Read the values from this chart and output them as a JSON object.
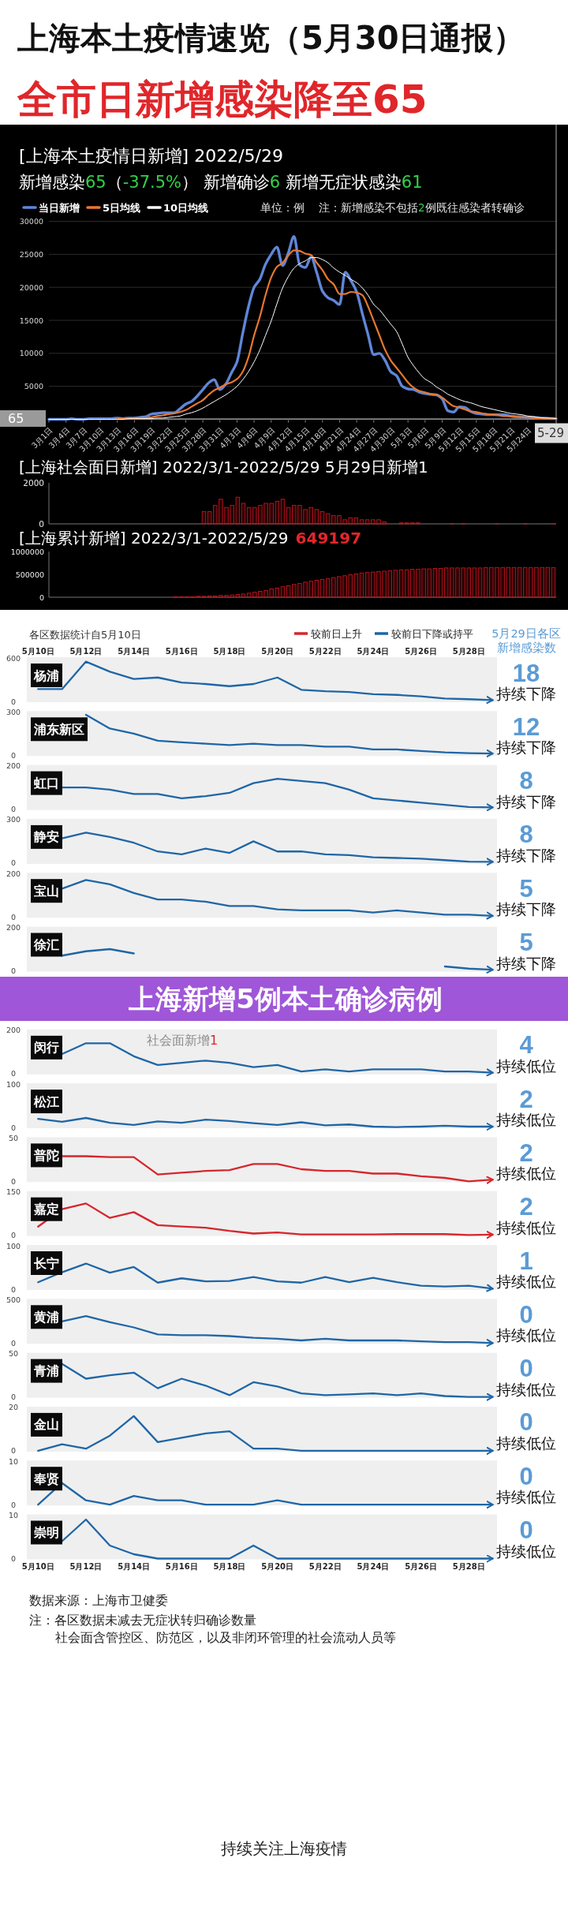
{
  "chart_data": [
    {
      "type": "other",
      "title": "上海本土疫情速览（5月30日通报）",
      "subtitle": "全市日新增感染降至65"
    },
    {
      "type": "line",
      "title": "[上海本土疫情日新增] 2022/5/29",
      "subtitle": "新增感染65（-37.5%） 新增确诊6 新增无症状感染61",
      "annotations": [
        "单位：例",
        "注：新增感染不包括2例既往感染者转确诊"
      ],
      "x": [
        "2022-03-01",
        "2022-03-02",
        "2022-03-03",
        "2022-03-04",
        "2022-03-05",
        "2022-03-06",
        "2022-03-07",
        "2022-03-08",
        "2022-03-09",
        "2022-03-10",
        "2022-03-11",
        "2022-03-12",
        "2022-03-13",
        "2022-03-14",
        "2022-03-15",
        "2022-03-16",
        "2022-03-17",
        "2022-03-18",
        "2022-03-19",
        "2022-03-20",
        "2022-03-21",
        "2022-03-22",
        "2022-03-23",
        "2022-03-24",
        "2022-03-25",
        "2022-03-26",
        "2022-03-27",
        "2022-03-28",
        "2022-03-29",
        "2022-03-30",
        "2022-03-31",
        "2022-04-01",
        "2022-04-02",
        "2022-04-03",
        "2022-04-04",
        "2022-04-05",
        "2022-04-06",
        "2022-04-07",
        "2022-04-08",
        "2022-04-09",
        "2022-04-10",
        "2022-04-11",
        "2022-04-12",
        "2022-04-13",
        "2022-04-14",
        "2022-04-15",
        "2022-04-16",
        "2022-04-17",
        "2022-04-18",
        "2022-04-19",
        "2022-04-20",
        "2022-04-21",
        "2022-04-22",
        "2022-04-23",
        "2022-04-24",
        "2022-04-25",
        "2022-04-26",
        "2022-04-27",
        "2022-04-28",
        "2022-04-29",
        "2022-04-30",
        "2022-05-01",
        "2022-05-02",
        "2022-05-03",
        "2022-05-04",
        "2022-05-05",
        "2022-05-06",
        "2022-05-07",
        "2022-05-08",
        "2022-05-09",
        "2022-05-10",
        "2022-05-11",
        "2022-05-12",
        "2022-05-13",
        "2022-05-14",
        "2022-05-15",
        "2022-05-16",
        "2022-05-17",
        "2022-05-18",
        "2022-05-19",
        "2022-05-20",
        "2022-05-21",
        "2022-05-22",
        "2022-05-23",
        "2022-05-24",
        "2022-05-25",
        "2022-05-26",
        "2022-05-27",
        "2022-05-28",
        "2022-05-29"
      ],
      "series": [
        {
          "name": "当日新增",
          "color": "#5f86d8",
          "values": [
            0,
            0,
            0,
            0,
            100,
            0,
            0,
            100,
            100,
            100,
            100,
            100,
            200,
            100,
            200,
            200,
            300,
            400,
            800,
            900,
            1000,
            1000,
            1000,
            1600,
            2300,
            2700,
            3500,
            4500,
            5500,
            6000,
            4500,
            5300,
            7000,
            8700,
            13000,
            17000,
            20000,
            21200,
            23500,
            25000,
            26100,
            23300,
            25200,
            27700,
            23400,
            23000,
            24600,
            22200,
            19400,
            18400,
            18000,
            17400,
            22300,
            21000,
            19300,
            16000,
            12800,
            9800,
            10000,
            8900,
            7200,
            6600,
            5000,
            4600,
            4500,
            4100,
            3900,
            3800,
            3700,
            3100,
            1300,
            1100,
            1900,
            1800,
            1200,
            900,
            800,
            700,
            700,
            700,
            700,
            500,
            400,
            400,
            300,
            300,
            200,
            200,
            100,
            100
          ]
        },
        {
          "name": "5日均线",
          "color": "#e8772e",
          "values": [
            null,
            null,
            null,
            null,
            null,
            null,
            null,
            null,
            null,
            null,
            null,
            null,
            100,
            100,
            100,
            200,
            200,
            200,
            300,
            500,
            600,
            800,
            900,
            1100,
            1400,
            1900,
            2400,
            2900,
            3700,
            4400,
            4800,
            5300,
            5600,
            6100,
            7200,
            9400,
            12700,
            15500,
            18800,
            21500,
            23100,
            23700,
            24800,
            25600,
            25500,
            25100,
            24900,
            23700,
            22600,
            21200,
            20400,
            19000,
            19000,
            19300,
            19200,
            18800,
            17100,
            14900,
            12700,
            10500,
            8900,
            7800,
            6700,
            5600,
            4800,
            4300,
            4100,
            3800,
            3700,
            3300,
            2600,
            2000,
            1800,
            1500,
            1200,
            1100,
            900,
            800,
            700,
            600,
            500,
            500,
            400,
            300,
            300,
            200,
            200,
            100,
            100,
            100
          ]
        },
        {
          "name": "10日均线",
          "color": "#ffffff",
          "values": [
            0,
            0,
            0,
            0,
            0,
            0,
            0,
            0,
            0,
            0,
            0,
            0,
            0,
            0,
            100,
            100,
            100,
            100,
            100,
            200,
            200,
            300,
            400,
            500,
            800,
            1000,
            1300,
            1700,
            2200,
            2700,
            3200,
            3700,
            4300,
            5000,
            6000,
            7200,
            8700,
            10500,
            12700,
            14900,
            17500,
            19900,
            21600,
            22900,
            23600,
            24000,
            24500,
            24500,
            24200,
            23700,
            22900,
            22300,
            21800,
            21200,
            20700,
            19900,
            18800,
            17400,
            16600,
            15500,
            14400,
            13300,
            11400,
            9400,
            8100,
            7000,
            6100,
            5600,
            4900,
            4400,
            3800,
            3400,
            3000,
            2700,
            2500,
            2200,
            1900,
            1700,
            1500,
            1300,
            1100,
            900,
            800,
            700,
            500,
            400,
            300,
            200,
            200,
            100
          ]
        }
      ],
      "xlim": [
        "2022-03-01",
        "2022-05-29"
      ],
      "xticks": [
        {
          "value": "2022-03-01",
          "label": "3月1日"
        },
        {
          "value": "2022-03-04",
          "label": "3月4日"
        },
        {
          "value": "2022-03-07",
          "label": "3月7日"
        },
        {
          "value": "2022-03-10",
          "label": "3月10日"
        },
        {
          "value": "2022-03-13",
          "label": "3月13日"
        },
        {
          "value": "2022-03-16",
          "label": "3月16日"
        },
        {
          "value": "2022-03-19",
          "label": "3月19日"
        },
        {
          "value": "2022-03-22",
          "label": "3月22日"
        },
        {
          "value": "2022-03-25",
          "label": "3月25日"
        },
        {
          "value": "2022-03-28",
          "label": "3月28日"
        },
        {
          "value": "2022-03-31",
          "label": "3月31日"
        },
        {
          "value": "2022-04-03",
          "label": "4月3日"
        },
        {
          "value": "2022-04-06",
          "label": "4月6日"
        },
        {
          "value": "2022-04-09",
          "label": "4月9日"
        },
        {
          "value": "2022-04-12",
          "label": "4月12日"
        },
        {
          "value": "2022-04-15",
          "label": "4月15日"
        },
        {
          "value": "2022-04-18",
          "label": "4月18日"
        },
        {
          "value": "2022-04-21",
          "label": "4月21日"
        },
        {
          "value": "2022-04-24",
          "label": "4月24日"
        },
        {
          "value": "2022-04-27",
          "label": "4月27日"
        },
        {
          "value": "2022-04-30",
          "label": "4月30日"
        },
        {
          "value": "2022-05-03",
          "label": "5月3日"
        },
        {
          "value": "2022-05-06",
          "label": "5月6日"
        },
        {
          "value": "2022-05-09",
          "label": "5月9日"
        },
        {
          "value": "2022-05-12",
          "label": "5月12日"
        },
        {
          "value": "2022-05-15",
          "label": "5月15日"
        },
        {
          "value": "2022-05-18",
          "label": "5月18日"
        },
        {
          "value": "2022-05-21",
          "label": "5月21日"
        },
        {
          "value": "2022-05-24",
          "label": "5月24日"
        }
      ],
      "ylim": [
        0,
        30000
      ],
      "yticks": [
        5000,
        10000,
        15000,
        20000,
        25000,
        30000
      ],
      "grid": "y",
      "legend": "top left",
      "ref_lines": [
        {
          "axis": "x",
          "value": "2022-05-29",
          "label": "5-29",
          "color": "#b0b0b0"
        },
        {
          "axis": "y",
          "value": 65,
          "label": "65",
          "color": "#b0b0b0"
        }
      ]
    },
    {
      "type": "bar",
      "title": "[上海社会面日新增] 2022/3/1-2022/5/29 5月29日新增1",
      "categories": [
        null,
        null,
        null,
        null,
        null,
        null,
        null,
        null,
        null,
        null,
        null,
        null,
        null,
        null,
        null,
        null,
        null,
        null,
        null,
        null,
        null,
        null,
        null,
        null,
        null,
        null,
        null,
        null,
        null,
        null,
        null,
        null,
        null,
        null,
        null,
        null,
        null,
        null,
        null,
        null,
        null,
        null,
        null,
        null,
        null,
        null,
        null,
        null,
        null,
        null,
        null,
        null,
        null,
        null,
        null,
        null,
        null,
        null,
        null,
        null,
        null,
        null,
        null,
        null,
        null,
        null,
        null,
        null,
        null,
        null,
        null,
        null,
        null,
        null,
        null,
        null,
        null,
        null,
        null,
        null,
        null,
        null,
        null,
        null,
        null,
        null,
        null,
        null,
        null,
        null
      ],
      "values": [
        null,
        null,
        null,
        null,
        null,
        null,
        null,
        null,
        null,
        null,
        null,
        null,
        null,
        null,
        null,
        null,
        null,
        null,
        null,
        null,
        null,
        null,
        null,
        null,
        null,
        null,
        null,
        600,
        600,
        900,
        1200,
        800,
        900,
        1300,
        1000,
        800,
        800,
        900,
        1000,
        1000,
        1100,
        1200,
        800,
        900,
        900,
        700,
        800,
        700,
        600,
        500,
        400,
        400,
        200,
        300,
        300,
        200,
        200,
        200,
        200,
        100,
        0,
        0,
        50,
        50,
        50,
        50,
        0,
        0,
        0,
        0,
        0,
        20,
        0,
        20,
        0,
        0,
        0,
        0,
        0,
        20,
        0,
        0,
        0,
        0,
        20,
        0,
        0,
        0,
        0,
        1
      ],
      "color": "#c8141e",
      "ylim": [
        0,
        2000
      ],
      "yticks": [
        0,
        2000
      ],
      "tick_labels": "y"
    },
    {
      "type": "bar",
      "title": "[上海累计新增] 2022/3/1-2022/5/29",
      "annotations": [
        "649197"
      ],
      "categories": [
        null,
        null,
        null,
        null,
        null,
        null,
        null,
        null,
        null,
        null,
        null,
        null,
        null,
        null,
        null,
        null,
        null,
        null,
        null,
        null,
        null,
        null,
        null,
        null,
        null,
        null,
        null,
        null,
        null,
        null,
        null,
        null,
        null,
        null,
        null,
        null,
        null,
        null,
        null,
        null,
        null,
        null,
        null,
        null,
        null,
        null,
        null,
        null,
        null,
        null,
        null,
        null,
        null,
        null,
        null,
        null,
        null,
        null,
        null,
        null,
        null,
        null,
        null,
        null,
        null,
        null,
        null,
        null,
        null,
        null,
        null,
        null,
        null,
        null,
        null,
        null,
        null,
        null,
        null,
        null,
        null,
        null,
        null,
        null,
        null,
        null,
        null,
        null,
        null,
        null
      ],
      "values": [
        0,
        0,
        0,
        0,
        0,
        0,
        0,
        0,
        0,
        0,
        0,
        0,
        0,
        0,
        0,
        0,
        0,
        0,
        0,
        0,
        0,
        0,
        10000,
        10000,
        10000,
        10000,
        20000,
        20000,
        30000,
        30000,
        40000,
        40000,
        50000,
        60000,
        70000,
        90000,
        110000,
        130000,
        150000,
        180000,
        200000,
        230000,
        250000,
        280000,
        300000,
        330000,
        350000,
        370000,
        390000,
        410000,
        430000,
        450000,
        470000,
        490000,
        510000,
        530000,
        540000,
        550000,
        560000,
        570000,
        580000,
        590000,
        600000,
        600000,
        610000,
        610000,
        620000,
        620000,
        630000,
        630000,
        640000,
        640000,
        640000,
        640000,
        640000,
        640000,
        640000,
        650000,
        650000,
        650000,
        650000,
        650000,
        650000,
        650000,
        650000,
        650000,
        650000,
        650000,
        650000,
        650000
      ],
      "color": "#c8141e",
      "ylim": [
        0,
        1000000
      ],
      "yticks": [
        0,
        500000,
        1000000
      ],
      "tick_labels": "y"
    },
    {
      "type": "line",
      "title": "杨浦",
      "subtitle": "各区数据统计自5月10日",
      "legend": "top right",
      "categories": [
        "5月10日",
        null,
        "5月12日",
        null,
        "5月14日",
        null,
        "5月16日",
        null,
        "5月18日",
        null,
        "5月20日",
        null,
        "5月22日",
        null,
        "5月24日",
        null,
        "5月26日",
        null,
        "5月28日",
        null
      ],
      "series": [
        {
          "name": "较前日下降或持平",
          "color": "#1f66a6",
          "values": [
            170,
            170,
            550,
            410,
            310,
            330,
            260,
            240,
            210,
            240,
            330,
            160,
            140,
            130,
            100,
            90,
            70,
            40,
            30,
            18
          ]
        }
      ],
      "ylim": [
        0,
        600
      ],
      "yticks": [
        0,
        600
      ],
      "annotations": [
        "18",
        "持续下降",
        "5月29日各区新增感染数"
      ]
    },
    {
      "type": "line",
      "title": "浦东新区",
      "tick_labels": "y",
      "categories": [
        null,
        null,
        null,
        null,
        null,
        null,
        null,
        null,
        null,
        null,
        null,
        null,
        null,
        null,
        null,
        null,
        null,
        null,
        null,
        null
      ],
      "series": [
        {
          "color": "#1f66a6",
          "values": [
            null,
            null,
            280,
            185,
            150,
            100,
            90,
            80,
            70,
            80,
            70,
            70,
            60,
            60,
            40,
            40,
            30,
            20,
            15,
            12
          ]
        }
      ],
      "ylim": [
        0,
        300
      ],
      "yticks": [
        0,
        300
      ],
      "annotations": [
        "12",
        "持续下降"
      ]
    },
    {
      "type": "line",
      "title": "虹口",
      "tick_labels": "y",
      "categories": [
        null,
        null,
        null,
        null,
        null,
        null,
        null,
        null,
        null,
        null,
        null,
        null,
        null,
        null,
        null,
        null,
        null,
        null,
        null,
        null
      ],
      "series": [
        {
          "color": "#1f66a6",
          "values": [
            null,
            100,
            100,
            90,
            70,
            70,
            50,
            60,
            75,
            120,
            140,
            130,
            120,
            90,
            50,
            40,
            30,
            20,
            10,
            8
          ]
        }
      ],
      "ylim": [
        0,
        200
      ],
      "yticks": [
        0,
        200
      ],
      "annotations": [
        "8",
        "持续下降"
      ]
    },
    {
      "type": "line",
      "title": "静安",
      "tick_labels": "y",
      "categories": [
        null,
        null,
        null,
        null,
        null,
        null,
        null,
        null,
        null,
        null,
        null,
        null,
        null,
        null,
        null,
        null,
        null,
        null,
        null,
        null
      ],
      "series": [
        {
          "color": "#1f66a6",
          "values": [
            null,
            170,
            210,
            180,
            140,
            80,
            60,
            100,
            70,
            150,
            80,
            80,
            60,
            55,
            40,
            35,
            30,
            20,
            10,
            8
          ]
        }
      ],
      "ylim": [
        0,
        300
      ],
      "yticks": [
        0,
        300
      ],
      "annotations": [
        "8",
        "持续下降"
      ]
    },
    {
      "type": "line",
      "title": "宝山",
      "tick_labels": "y",
      "categories": [
        null,
        null,
        null,
        null,
        null,
        null,
        null,
        null,
        null,
        null,
        null,
        null,
        null,
        null,
        null,
        null,
        null,
        null,
        null,
        null
      ],
      "series": [
        {
          "color": "#1f66a6",
          "values": [
            null,
            130,
            170,
            150,
            110,
            80,
            80,
            70,
            50,
            50,
            35,
            30,
            30,
            30,
            20,
            30,
            20,
            10,
            10,
            5
          ]
        }
      ],
      "ylim": [
        0,
        200
      ],
      "yticks": [
        0,
        200
      ],
      "annotations": [
        "5",
        "持续下降"
      ]
    },
    {
      "type": "line",
      "title": "徐汇",
      "tick_labels": "y",
      "categories": [
        null,
        null,
        null,
        null,
        null,
        null,
        null,
        null,
        null,
        null,
        null,
        null,
        null,
        null,
        null,
        null,
        null,
        null,
        null,
        null
      ],
      "series": [
        {
          "color": "#1f66a6",
          "values": [
            null,
            70,
            90,
            100,
            80,
            null,
            null,
            null,
            null,
            null,
            null,
            null,
            null,
            null,
            null,
            null,
            null,
            20,
            10,
            5
          ]
        }
      ],
      "ylim": [
        0,
        200
      ],
      "yticks": [
        0,
        200
      ],
      "annotations": [
        "5",
        "持续下降"
      ]
    },
    {
      "type": "other",
      "title": "上海新增5例本土确诊病例"
    },
    {
      "type": "line",
      "title": "闵行",
      "tick_labels": "y",
      "categories": [
        null,
        null,
        null,
        null,
        null,
        null,
        null,
        null,
        null,
        null,
        null,
        null,
        null,
        null,
        null,
        null,
        null,
        null,
        null,
        null
      ],
      "series": [
        {
          "color": "#1f66a6",
          "values": [
            null,
            90,
            140,
            140,
            80,
            40,
            50,
            60,
            50,
            30,
            40,
            10,
            20,
            10,
            20,
            20,
            20,
            10,
            10,
            4
          ]
        }
      ],
      "ylim": [
        0,
        200
      ],
      "yticks": [
        0,
        200
      ],
      "annotations": [
        "4",
        "持续低位",
        "社会面新增1"
      ]
    },
    {
      "type": "line",
      "title": "松江",
      "tick_labels": "y",
      "categories": [
        null,
        null,
        null,
        null,
        null,
        null,
        null,
        null,
        null,
        null,
        null,
        null,
        null,
        null,
        null,
        null,
        null,
        null,
        null,
        null
      ],
      "series": [
        {
          "color": "#1f66a6",
          "values": [
            20,
            13,
            22,
            11,
            6,
            14,
            11,
            18,
            15,
            10,
            6,
            12,
            5,
            7,
            2,
            1,
            2,
            4,
            2,
            2
          ]
        }
      ],
      "ylim": [
        0,
        100
      ],
      "yticks": [
        0,
        100
      ],
      "annotations": [
        "2",
        "持续低位"
      ]
    },
    {
      "type": "line",
      "title": "普陀",
      "tick_labels": "y",
      "categories": [
        null,
        null,
        null,
        null,
        null,
        null,
        null,
        null,
        null,
        null,
        null,
        null,
        null,
        null,
        null,
        null,
        null,
        null,
        null,
        null
      ],
      "series": [
        {
          "name": "较前日上升",
          "color": "#d6262c",
          "values": [
            null,
            29,
            29,
            28,
            28,
            8,
            10,
            12,
            13,
            20,
            20,
            14,
            12,
            12,
            9,
            9,
            6,
            4,
            0,
            2
          ]
        }
      ],
      "ylim": [
        0,
        50
      ],
      "yticks": [
        0,
        50
      ],
      "annotations": [
        "2",
        "持续低位"
      ]
    },
    {
      "type": "line",
      "title": "嘉定",
      "tick_labels": "y",
      "categories": [
        null,
        null,
        null,
        null,
        null,
        null,
        null,
        null,
        null,
        null,
        null,
        null,
        null,
        null,
        null,
        null,
        null,
        null,
        null,
        null
      ],
      "series": [
        {
          "color": "#d6262c",
          "values": [
            30,
            90,
            110,
            60,
            80,
            35,
            30,
            26,
            15,
            6,
            10,
            3,
            3,
            3,
            3,
            4,
            4,
            4,
            1,
            2
          ]
        }
      ],
      "ylim": [
        0,
        150
      ],
      "yticks": [
        0,
        150
      ],
      "annotations": [
        "2",
        "持续低位"
      ]
    },
    {
      "type": "line",
      "title": "长宁",
      "tick_labels": "y",
      "categories": [
        null,
        null,
        null,
        null,
        null,
        null,
        null,
        null,
        null,
        null,
        null,
        null,
        null,
        null,
        null,
        null,
        null,
        null,
        null,
        null
      ],
      "series": [
        {
          "color": "#1f66a6",
          "values": [
            16,
            39,
            59,
            38,
            51,
            15,
            25,
            18,
            19,
            28,
            18,
            15,
            28,
            16,
            26,
            16,
            8,
            6,
            8,
            1
          ]
        }
      ],
      "ylim": [
        0,
        100
      ],
      "yticks": [
        0,
        100
      ],
      "annotations": [
        "1",
        "持续低位"
      ]
    },
    {
      "type": "line",
      "title": "黄浦",
      "tick_labels": "y",
      "categories": [
        null,
        null,
        null,
        null,
        null,
        null,
        null,
        null,
        null,
        null,
        null,
        null,
        null,
        null,
        null,
        null,
        null,
        null,
        null,
        null
      ],
      "series": [
        {
          "color": "#1f66a6",
          "values": [
            null,
            250,
            310,
            240,
            180,
            100,
            90,
            90,
            80,
            60,
            50,
            30,
            50,
            30,
            30,
            30,
            20,
            10,
            10,
            0
          ]
        }
      ],
      "ylim": [
        0,
        500
      ],
      "yticks": [
        0,
        500
      ],
      "annotations": [
        "0",
        "持续低位"
      ]
    },
    {
      "type": "line",
      "title": "青浦",
      "tick_labels": "y",
      "categories": [
        null,
        null,
        null,
        null,
        null,
        null,
        null,
        null,
        null,
        null,
        null,
        null,
        null,
        null,
        null,
        null,
        null,
        null,
        null,
        null
      ],
      "series": [
        {
          "color": "#1f66a6",
          "values": [
            null,
            38,
            21,
            25,
            28,
            10,
            21,
            13,
            2,
            17,
            12,
            4,
            2,
            3,
            4,
            2,
            4,
            1,
            0,
            0
          ]
        }
      ],
      "ylim": [
        0,
        50
      ],
      "yticks": [
        0,
        50
      ],
      "annotations": [
        "0",
        "持续低位"
      ]
    },
    {
      "type": "line",
      "title": "金山",
      "tick_labels": "y",
      "categories": [
        null,
        null,
        null,
        null,
        null,
        null,
        null,
        null,
        null,
        null,
        null,
        null,
        null,
        null,
        null,
        null,
        null,
        null,
        null,
        null
      ],
      "series": [
        {
          "color": "#1f66a6",
          "values": [
            0,
            3,
            1,
            7,
            16,
            4,
            6,
            8,
            9,
            1,
            1,
            0,
            0,
            0,
            0,
            0,
            0,
            0,
            0,
            0
          ]
        }
      ],
      "ylim": [
        0,
        20
      ],
      "yticks": [
        0,
        20
      ],
      "annotations": [
        "0",
        "持续低位"
      ]
    },
    {
      "type": "line",
      "title": "奉贤",
      "tick_labels": "y",
      "categories": [
        null,
        null,
        null,
        null,
        null,
        null,
        null,
        null,
        null,
        null,
        null,
        null,
        null,
        null,
        null,
        null,
        null,
        null,
        null,
        null
      ],
      "series": [
        {
          "color": "#1f66a6",
          "values": [
            0,
            5,
            1,
            0,
            2,
            1,
            1,
            0,
            0,
            0,
            1,
            0,
            0,
            0,
            0,
            0,
            0,
            0,
            0,
            0
          ]
        }
      ],
      "ylim": [
        0,
        10
      ],
      "yticks": [
        0,
        10
      ],
      "annotations": [
        "0",
        "持续低位"
      ]
    },
    {
      "type": "line",
      "title": "崇明",
      "categories": [
        "5月10日",
        null,
        "5月12日",
        null,
        "5月14日",
        null,
        "5月16日",
        null,
        "5月18日",
        null,
        "5月20日",
        null,
        "5月22日",
        null,
        "5月24日",
        null,
        "5月26日",
        null,
        "5月28日",
        null
      ],
      "series": [
        {
          "color": "#1f66a6",
          "values": [
            null,
            4,
            9,
            3,
            1,
            0,
            0,
            0,
            0,
            3,
            0,
            0,
            0,
            0,
            0,
            0,
            0,
            0,
            0,
            0
          ]
        }
      ],
      "ylim": [
        0,
        10
      ],
      "yticks": [
        0,
        10
      ],
      "annotations": [
        "0",
        "持续低位"
      ]
    },
    {
      "type": "other",
      "annotations": [
        "数据来源：上海市卫健委",
        "注：各区数据未减去无症状转归确诊数量",
        "社会面含管控区、防范区，以及非闭环管理的社会流动人员等",
        "持续关注上海疫情"
      ]
    }
  ]
}
